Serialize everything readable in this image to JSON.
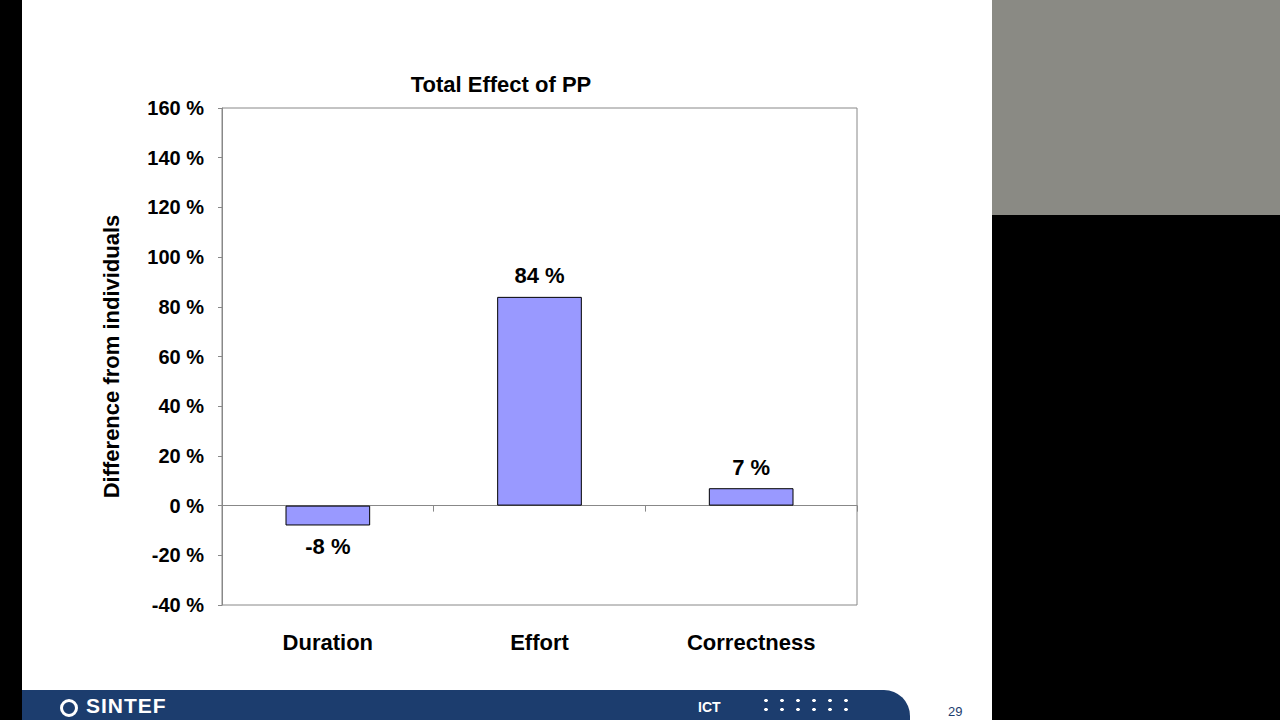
{
  "chart_data": {
    "type": "bar",
    "title": "Total Effect of PP",
    "y_label": "Difference from individuals",
    "categories": [
      "Duration",
      "Effort",
      "Correctness"
    ],
    "values": [
      -8,
      84,
      7
    ],
    "value_labels": [
      "-8 %",
      "84 %",
      "7 %"
    ],
    "data_labels": true,
    "color": "#9999ff",
    "ylim": [
      -40,
      160
    ],
    "yticks": [
      {
        "value": -40,
        "label": "-40 %"
      },
      {
        "value": -20,
        "label": "-20 %"
      },
      {
        "value": 0,
        "label": "0 %"
      },
      {
        "value": 20,
        "label": "20 %"
      },
      {
        "value": 40,
        "label": "40 %"
      },
      {
        "value": 60,
        "label": "60 %"
      },
      {
        "value": 80,
        "label": "80 %"
      },
      {
        "value": 100,
        "label": "100 %"
      },
      {
        "value": 120,
        "label": "120 %"
      },
      {
        "value": 140,
        "label": "140 %"
      },
      {
        "value": 160,
        "label": "160 %"
      }
    ],
    "grid": false
  },
  "footer": {
    "logo": "SINTEF",
    "section": "ICT",
    "page": "29"
  }
}
